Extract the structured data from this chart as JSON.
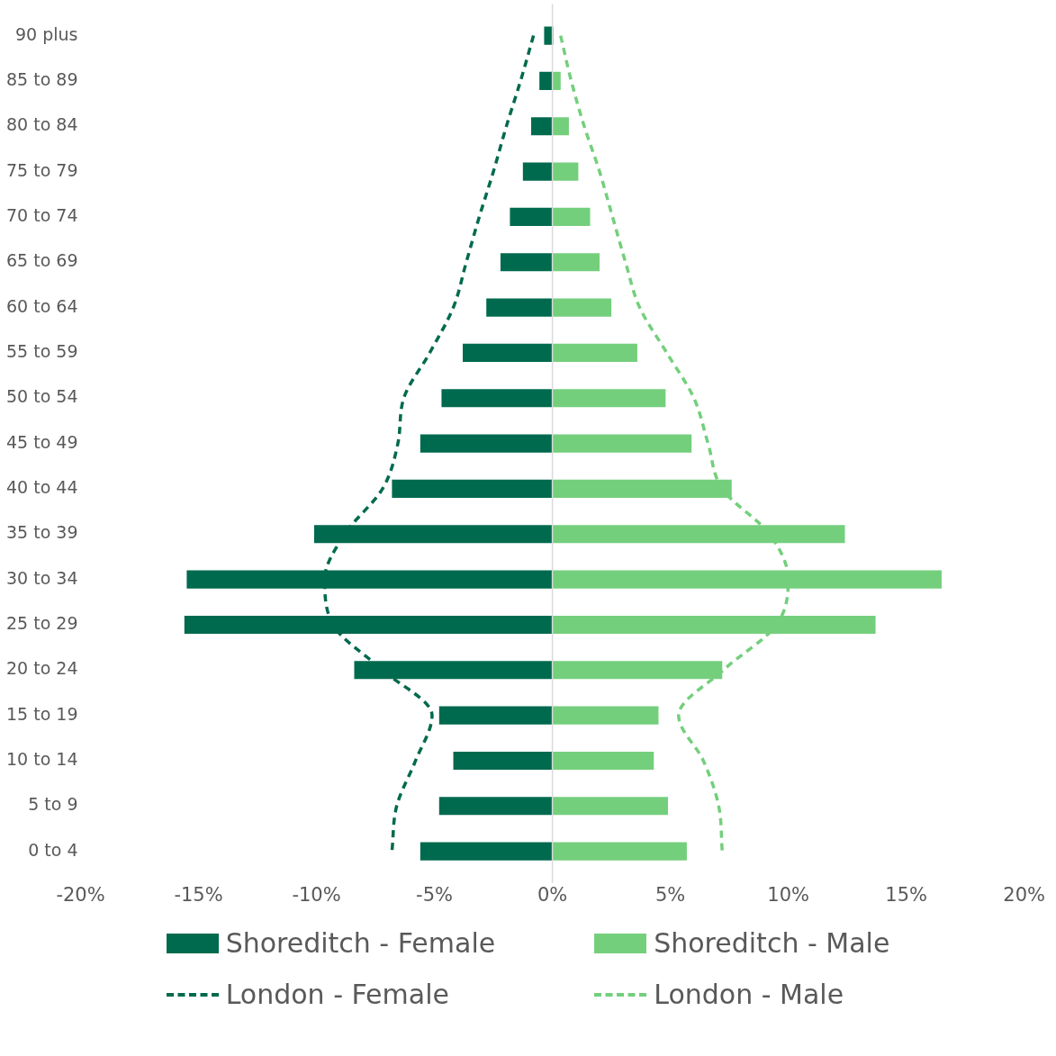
{
  "chart_data": {
    "type": "bar",
    "orientation": "horizontal",
    "stacked": true,
    "categories": [
      "90 plus",
      "85 to 89",
      "80 to 84",
      "75 to 79",
      "70 to 74",
      "65 to 69",
      "60 to 64",
      "55 to 59",
      "50 to 54",
      "45 to 49",
      "40 to 44",
      "35 to 39",
      "30 to 34",
      "25 to 29",
      "20 to 24",
      "15 to 19",
      "10 to 14",
      "5 to 9",
      "0 to 4"
    ],
    "series": [
      {
        "name": "Shoreditch - Female",
        "color": "#006a4e",
        "values": [
          -0.35,
          -0.55,
          -0.9,
          -1.25,
          -1.8,
          -2.2,
          -2.8,
          -3.8,
          -4.7,
          -5.6,
          -6.8,
          -10.1,
          -15.5,
          -15.6,
          -8.4,
          -4.8,
          -4.2,
          -4.8,
          -5.6
        ]
      },
      {
        "name": "Shoreditch - Male",
        "color": "#74cf7c",
        "values": [
          0.05,
          0.35,
          0.7,
          1.1,
          1.6,
          2.0,
          2.5,
          3.6,
          4.8,
          5.9,
          7.6,
          12.4,
          16.5,
          13.7,
          7.2,
          4.5,
          4.3,
          4.9,
          5.7
        ]
      },
      {
        "name": "London - Female",
        "type": "line",
        "line_style": "dashed",
        "marker": "none",
        "color": "#006a4e",
        "values": [
          -0.8,
          -1.35,
          -1.95,
          -2.5,
          -3.1,
          -3.65,
          -4.2,
          -5.2,
          -6.3,
          -6.55,
          -7.2,
          -8.8,
          -9.65,
          -9.3,
          -7.2,
          -5.1,
          -5.8,
          -6.6,
          -6.8
        ]
      },
      {
        "name": "London - Male",
        "type": "line",
        "line_style": "dashed",
        "marker": "none",
        "color": "#74cf7c",
        "values": [
          0.35,
          0.8,
          1.35,
          2.0,
          2.55,
          3.1,
          3.7,
          4.85,
          6.0,
          6.6,
          7.2,
          9.2,
          10.0,
          9.5,
          7.25,
          5.35,
          6.4,
          7.05,
          7.2
        ]
      }
    ],
    "xlim": [
      -20,
      20
    ],
    "xticks": [
      {
        "value": -20,
        "label": "-20%"
      },
      {
        "value": -15,
        "label": "-15%"
      },
      {
        "value": -10,
        "label": "-10%"
      },
      {
        "value": -5,
        "label": "-5%"
      },
      {
        "value": 0,
        "label": "0%"
      },
      {
        "value": 5,
        "label": "5%"
      },
      {
        "value": 10,
        "label": "10%"
      },
      {
        "value": 15,
        "label": "15%"
      },
      {
        "value": 20,
        "label": "20%"
      }
    ],
    "ref_lines": [
      {
        "axis": "x",
        "value": 0,
        "color": "#d9d9d9"
      }
    ],
    "grid": false,
    "legend": "bottom"
  }
}
